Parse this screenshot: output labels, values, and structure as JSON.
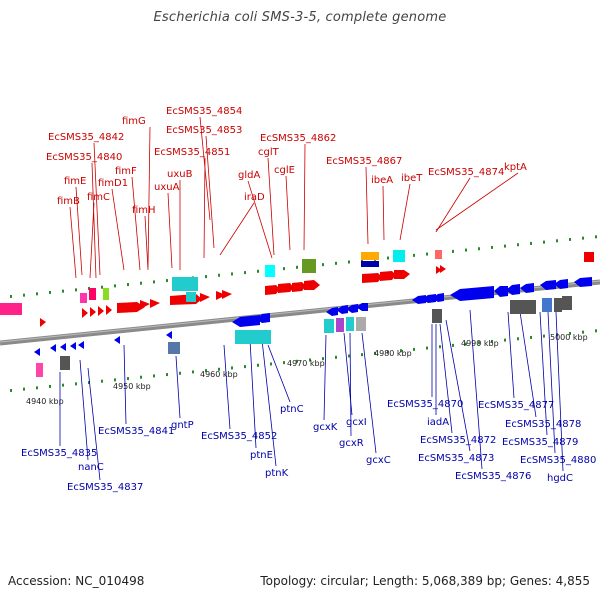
{
  "title": "Escherichia coli SMS-3-5, complete genome",
  "footer": {
    "accession": "Accession: NC_010498",
    "summary": "Topology: circular; Length: 5,068,389 bp; Genes: 4,855"
  },
  "colors": {
    "forward_gene": "#ee0000",
    "reverse_gene": "#0000ee",
    "backbone": "#888888",
    "cyan_feature": "#00cccc",
    "gray_feature": "#666666",
    "magenta_feature": "#ff00aa"
  },
  "ticks": [
    "4940 kbp",
    "4950 kbp",
    "4960 kbp",
    "4970 kbp",
    "4980 kbp",
    "4990 kbp",
    "5000 kbp"
  ],
  "top_labels": [
    "EcSMS35_4854",
    "EcSMS35_4853",
    "fimG",
    "EcSMS35_4842",
    "EcSMS35_4840",
    "EcSMS35_4851",
    "EcSMS35_4862",
    "cglT",
    "cglE",
    "gldA",
    "EcSMS35_4867",
    "ibeA",
    "ibeT",
    "EcSMS35_4874",
    "kptA",
    "fimF",
    "uxuB",
    "fimE",
    "fimD1",
    "uxuA",
    "fimC",
    "fimB",
    "fimH",
    "iraD"
  ],
  "bottom_labels": [
    "EcSMS35_4835",
    "nanC",
    "EcSMS35_4837",
    "EcSMS35_4841",
    "gntP",
    "EcSMS35_4852",
    "ptnE",
    "ptnK",
    "ptnC",
    "gcxK",
    "gcxI",
    "gcxR",
    "gcxC",
    "EcSMS35_4870",
    "iadA",
    "EcSMS35_4872",
    "EcSMS35_4873",
    "EcSMS35_4876",
    "EcSMS35_4877",
    "EcSMS35_4878",
    "EcSMS35_4879",
    "EcSMS35_4880",
    "hgdC"
  ]
}
